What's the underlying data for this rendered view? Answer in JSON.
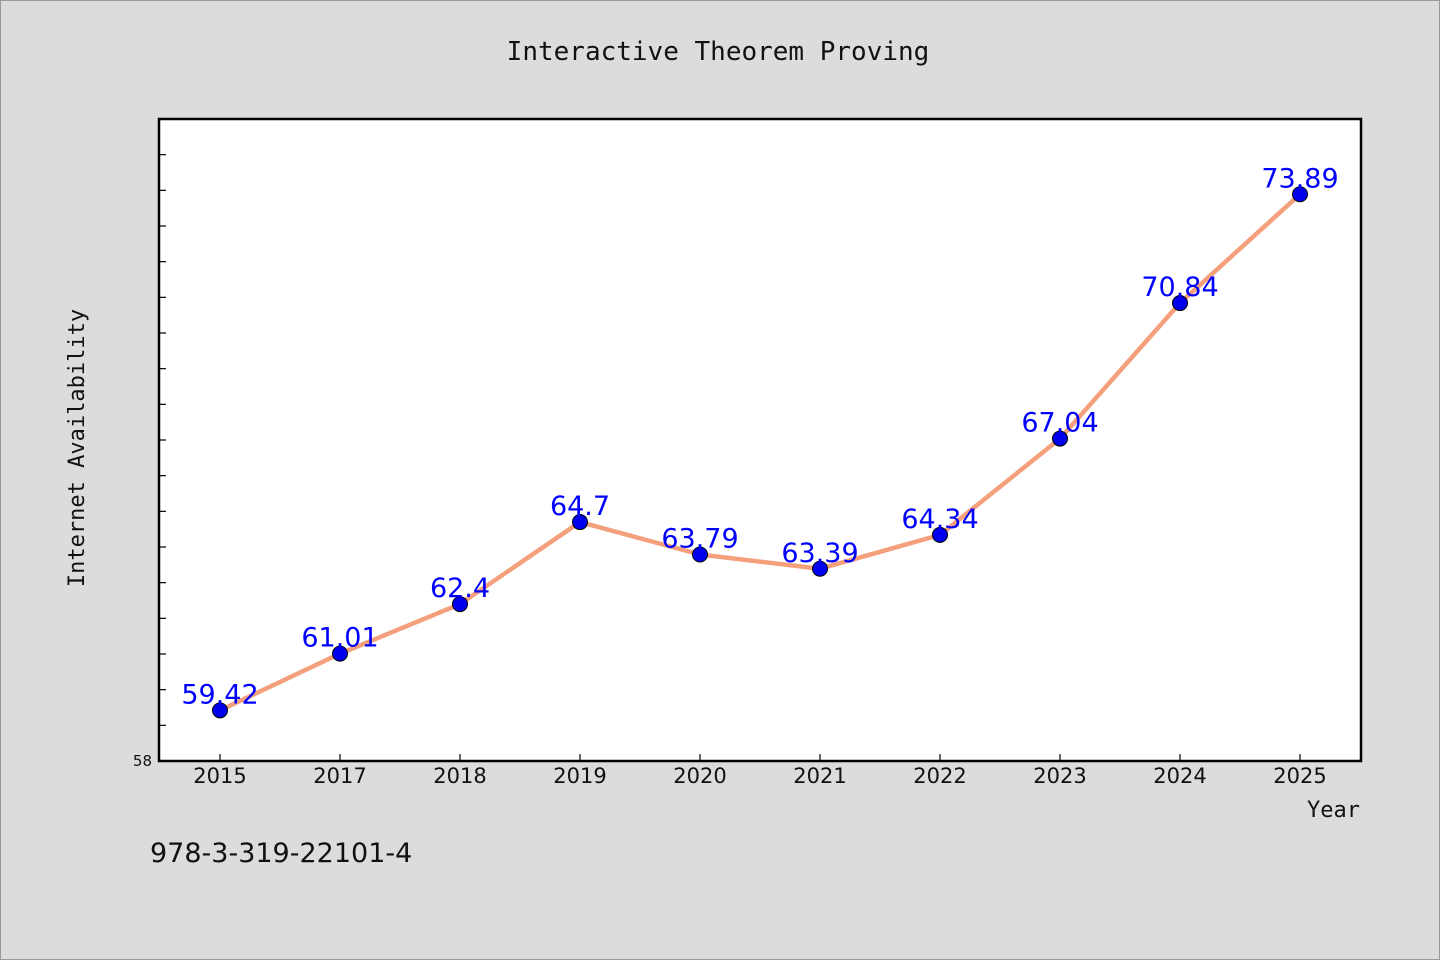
{
  "chart_data": {
    "type": "line",
    "title": "Interactive Theorem Proving",
    "xlabel": "Year",
    "ylabel": "Internet Availability",
    "categories": [
      "2015",
      "2017",
      "2018",
      "2019",
      "2020",
      "2021",
      "2022",
      "2023",
      "2024",
      "2025"
    ],
    "series": [
      {
        "values": [
          59.42,
          61.01,
          62.4,
          64.7,
          63.79,
          63.39,
          64.34,
          67.04,
          70.84,
          73.89
        ],
        "data_labels": [
          "59.42",
          "61.01",
          "62.4",
          "64.7",
          "63.79",
          "63.39",
          "64.34",
          "67.04",
          "70.84",
          "73.89"
        ]
      }
    ],
    "ylim": [
      58,
      76
    ],
    "y_tick_labels": [
      "58"
    ],
    "grid": false,
    "legend": "none"
  },
  "annotation": {
    "isbn": "978-3-319-22101-4"
  },
  "colors": {
    "line": "#f4a07c",
    "marker": "#0000ee",
    "data_label": "#0000ff",
    "text": "#111111",
    "plot_background": "#ffffff",
    "page_background": "#dcdcdc"
  }
}
